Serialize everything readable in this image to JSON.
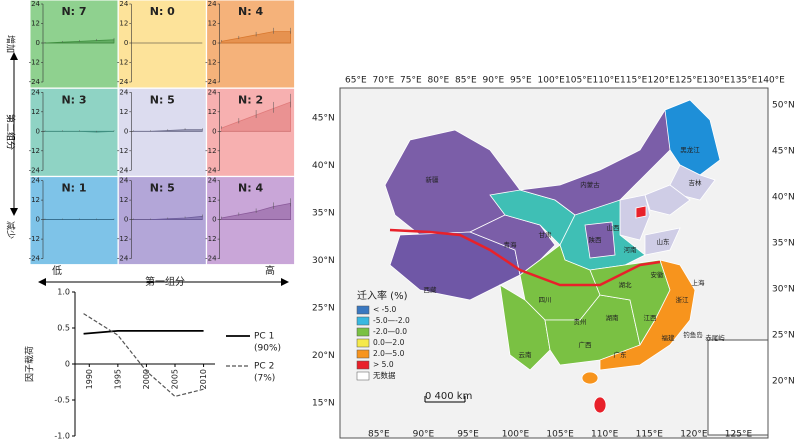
{
  "chart_data": [
    {
      "type": "area",
      "label": "N: 7",
      "color": "#8fd18f",
      "line": "#3f8f3f",
      "ylim": [
        -24,
        24
      ],
      "yticks": [
        24,
        12,
        0,
        -12,
        -24
      ],
      "values": [
        0,
        0.5,
        1,
        1.5,
        2
      ]
    },
    {
      "type": "area",
      "label": "N: 0",
      "color": "#fde39a",
      "line": "#b89a3a",
      "ylim": [
        -24,
        24
      ],
      "yticks": [
        24,
        12,
        0,
        -12,
        -24
      ],
      "values": []
    },
    {
      "type": "area",
      "label": "N: 4",
      "color": "#f5b27a",
      "line": "#d9782e",
      "ylim": [
        -24,
        24
      ],
      "yticks": [
        24,
        12,
        0,
        -12,
        -24
      ],
      "values": [
        1,
        3,
        5,
        7,
        7
      ]
    },
    {
      "type": "area",
      "label": "N: 3",
      "color": "#8fd3c4",
      "line": "#3f8f80",
      "ylim": [
        -24,
        24
      ],
      "yticks": [
        24,
        12,
        0,
        -12,
        -24
      ],
      "values": [
        0,
        0,
        0,
        -0.5,
        0
      ]
    },
    {
      "type": "area",
      "label": "N: 5",
      "color": "#dcdcef",
      "line": "#707090",
      "ylim": [
        -24,
        24
      ],
      "yticks": [
        24,
        12,
        0,
        -12,
        -24
      ],
      "values": [
        0,
        0,
        0.5,
        1,
        1
      ]
    },
    {
      "type": "area",
      "label": "N: 2",
      "color": "#f7b0b0",
      "line": "#e07a7a",
      "ylim": [
        -24,
        24
      ],
      "yticks": [
        24,
        12,
        0,
        -12,
        -24
      ],
      "values": [
        2,
        6,
        10,
        14,
        18
      ]
    },
    {
      "type": "area",
      "label": "N: 1",
      "color": "#7ec3e8",
      "line": "#2f6f95",
      "ylim": [
        -24,
        24
      ],
      "yticks": [
        24,
        12,
        0,
        -12,
        -24
      ],
      "values": [
        0,
        0,
        0,
        0,
        0
      ]
    },
    {
      "type": "area",
      "label": "N: 5",
      "color": "#b3a6d8",
      "line": "#6a5a9a",
      "ylim": [
        -24,
        24
      ],
      "yticks": [
        24,
        12,
        0,
        -12,
        -24
      ],
      "values": [
        0,
        0,
        0.5,
        1,
        2
      ]
    },
    {
      "type": "area",
      "label": "N: 4",
      "color": "#c9a6d8",
      "line": "#8a5a9a",
      "ylim": [
        -24,
        24
      ],
      "yticks": [
        24,
        12,
        0,
        -12,
        -24
      ],
      "values": [
        1,
        3,
        5,
        8,
        10
      ]
    },
    {
      "type": "line",
      "y_label": "因子载荷",
      "x": [
        1989,
        1995,
        2000,
        2005,
        2010
      ],
      "xlim": [
        1987.5,
        2012
      ],
      "xticks": [
        1990,
        1995,
        2000,
        2005,
        2010
      ],
      "ylim": [
        -1,
        1
      ],
      "yticks": [
        {
          "value": 1,
          "label": "1.0"
        },
        0.5,
        0,
        -0.5,
        {
          "value": -1,
          "label": "-1.0"
        }
      ],
      "series": [
        {
          "name": "PC 1",
          "share": "(90%)",
          "color": "#000000",
          "dash": false,
          "values": [
            0.42,
            0.46,
            0.46,
            0.46,
            0.46
          ]
        },
        {
          "name": "PC 2",
          "share": "(7%)",
          "color": "#555555",
          "dash": true,
          "values": [
            0.7,
            0.4,
            -0.1,
            -0.45,
            -0.35
          ]
        }
      ]
    }
  ],
  "panel_axes": {
    "x_low": "低",
    "x_label": "第一组分",
    "x_high": "高",
    "y_high": "增加",
    "y_label": "第二组分",
    "y_low": "减少"
  },
  "map": {
    "lon_top": [
      "65°E",
      "70°E",
      "75°E",
      "80°E",
      "85°E",
      "90°E",
      "95°E",
      "100°E",
      "105°E",
      "110°E",
      "115°E",
      "120°E",
      "125°E",
      "130°E",
      "135°E",
      "140°E"
    ],
    "lon_bottom": [
      "85°E",
      "90°E",
      "95°E",
      "100°E",
      "105°E",
      "110°E",
      "115°E",
      "120°E",
      "125°E"
    ],
    "lat_right": [
      "50°N",
      "45°N",
      "40°N",
      "35°N",
      "30°N",
      "25°N",
      "20°N"
    ],
    "lat_left": [
      "45°N",
      "40°N",
      "35°N",
      "30°N",
      "25°N",
      "20°N",
      "15°N"
    ],
    "legend_title": "迁入率 (%)",
    "legend": [
      {
        "label": "< -5.0",
        "color": "#3a78c0"
      },
      {
        "label": "-5.0—-2.0",
        "color": "#38b8e0"
      },
      {
        "label": "-2.0—0.0",
        "color": "#7ac143"
      },
      {
        "label": "0.0—2.0",
        "color": "#f5e94a"
      },
      {
        "label": "2.0—5.0",
        "color": "#f7941d"
      },
      {
        "label": "> 5.0",
        "color": "#e8212a"
      },
      {
        "label": "无数据",
        "color": "#ffffff"
      }
    ],
    "scale": "0     400 km",
    "provinces": [
      "新疆",
      "西藏",
      "青海",
      "甘肃",
      "内蒙古",
      "黑龙江",
      "吉林",
      "陕西",
      "山西",
      "河南",
      "山东",
      "四川",
      "云南",
      "贵州",
      "广西",
      "湖南",
      "湖北",
      "江西",
      "安徽",
      "浙江",
      "福建",
      "广东",
      "上海",
      "钓鱼岛",
      "赤尾屿"
    ]
  }
}
